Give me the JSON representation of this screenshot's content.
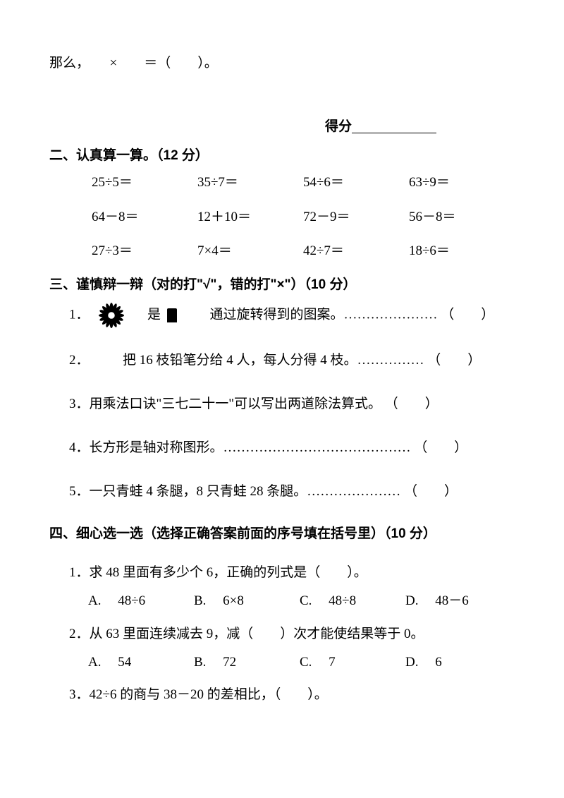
{
  "intro": "那么，　　×　　＝（　　）。",
  "score_label": "得分",
  "section2": {
    "title": "二、认真算一算。（12 分）",
    "rows": [
      [
        "25÷5＝",
        "35÷7＝",
        "54÷6＝",
        "63÷9＝"
      ],
      [
        "64－8＝",
        "12＋10＝",
        "72－9＝",
        "56－8＝"
      ],
      [
        "27÷3＝",
        "7×4＝",
        "42÷7＝",
        "18÷6＝"
      ]
    ]
  },
  "section3": {
    "title": "三、谨慎辩一辩（对的打\"√\"，错的打\"×\"）（10 分）",
    "items": [
      {
        "num": "1．",
        "before_icon": "",
        "after_icon": "　是",
        "after_icon2": "　　通过旋转得到的图案。………………… （　　）"
      },
      {
        "num": "2．",
        "text": "　　　把 16 枝铅笔分给 4 人，每人分得 4 枝。…………… （　　）"
      },
      {
        "num": "3．",
        "text": "用乘法口诀\"三七二十一\"可以写出两道除法算式。 （　　）"
      },
      {
        "num": "4．",
        "text": "长方形是轴对称图形。…………………………………… （　　）"
      },
      {
        "num": "5．",
        "text": "一只青蛙 4 条腿，8 只青蛙 28 条腿。…………………  （　　）"
      }
    ]
  },
  "section4": {
    "title": "四、细心选一选（选择正确答案前面的序号填在括号里）（10 分）",
    "items": [
      {
        "num": "1．",
        "stem": "求 48 里面有多少个 6，正确的列式是（　　）。",
        "opts": [
          "A.　 48÷6",
          "B.　 6×8",
          "C.　 48÷8",
          "D.　 48－6"
        ]
      },
      {
        "num": "2．",
        "stem": "从 63 里面连续减去 9，减（　　）次才能使结果等于 0。",
        "opts": [
          "A.　 54",
          "B.　 72",
          "C.　 7",
          "D.　 6"
        ]
      },
      {
        "num": "3．",
        "stem": "42÷6 的商与 38－20 的差相比，（　　）。",
        "opts": []
      }
    ]
  }
}
